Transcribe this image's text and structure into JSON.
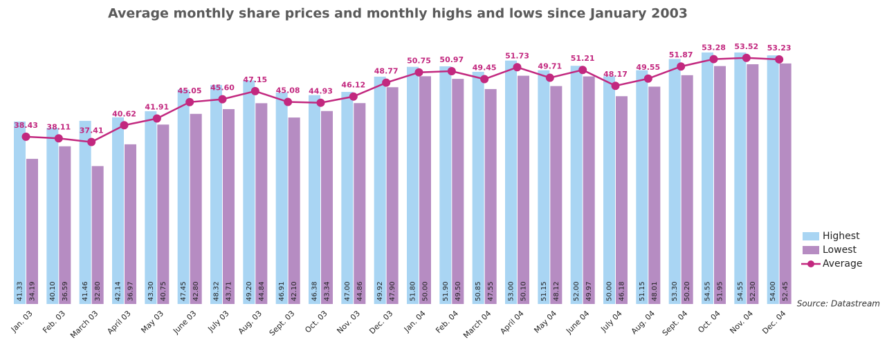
{
  "chart_data": {
    "type": "bar-line",
    "title": "Average monthly share prices and monthly highs and lows since January 2003",
    "source": "Source: Datastream",
    "categories": [
      "Jan. 03",
      "Feb. 03",
      "March 03",
      "April 03",
      "May 03",
      "June 03",
      "July 03",
      "Aug. 03",
      "Sept. 03",
      "Oct. 03",
      "Nov. 03",
      "Dec. 03",
      "Jan. 04",
      "Feb. 04",
      "March 04",
      "April 04",
      "May 04",
      "June 04",
      "July 04",
      "Aug. 04",
      "Sept. 04",
      "Oct. 04",
      "Nov. 04",
      "Dec. 04"
    ],
    "ylim": [
      6.4,
      56
    ],
    "legend": "right",
    "series": [
      {
        "name": "Highest",
        "type": "bar",
        "color": "#a9d5f3",
        "values": [
          41.33,
          40.1,
          41.46,
          42.14,
          43.3,
          47.45,
          48.32,
          49.2,
          46.91,
          46.38,
          47.0,
          49.92,
          51.8,
          51.9,
          50.85,
          53.0,
          51.15,
          52.0,
          50.0,
          51.15,
          53.3,
          54.55,
          54.55,
          54.0
        ],
        "value_labels": [
          "41.33",
          "40.10",
          "41.46",
          "42.14",
          "43.30",
          "47.45",
          "48.32",
          "49.20",
          "46.91",
          "46.38",
          "47.00",
          "49.92",
          "51.80",
          "51.90",
          "50.85",
          "53.00",
          "51.15",
          "52.00",
          "50.00",
          "51.15",
          "53.30",
          "54.55",
          "54.55",
          "54.00"
        ]
      },
      {
        "name": "Lowest",
        "type": "bar",
        "color": "#b68cc2",
        "values": [
          34.19,
          36.59,
          32.8,
          36.97,
          40.75,
          42.8,
          43.71,
          44.84,
          42.1,
          43.34,
          44.86,
          47.9,
          50.0,
          49.5,
          47.55,
          50.1,
          48.12,
          49.97,
          46.18,
          48.01,
          50.2,
          51.95,
          52.3,
          52.45
        ],
        "value_labels": [
          "34.19",
          "36.59",
          "32.80",
          "36.97",
          "40.75",
          "42.80",
          "43.71",
          "44.84",
          "42.10",
          "43.34",
          "44.86",
          "47.90",
          "50.00",
          "49.50",
          "47.55",
          "50.10",
          "48.12",
          "49.97",
          "46.18",
          "48.01",
          "50.20",
          "51.95",
          "52.30",
          "52.45"
        ]
      },
      {
        "name": "Average",
        "type": "line",
        "color": "#c2287f",
        "values": [
          38.43,
          38.11,
          37.41,
          40.62,
          41.91,
          45.05,
          45.6,
          47.15,
          45.08,
          44.93,
          46.12,
          48.77,
          50.75,
          50.97,
          49.45,
          51.73,
          49.71,
          51.21,
          48.17,
          49.55,
          51.87,
          53.28,
          53.52,
          53.23
        ],
        "value_labels": [
          "38.43",
          "38.11",
          "37.41",
          "40.62",
          "41.91",
          "45.05",
          "45.60",
          "47.15",
          "45.08",
          "44.93",
          "46.12",
          "48.77",
          "50.75",
          "50.97",
          "49.45",
          "51.73",
          "49.71",
          "51.21",
          "48.17",
          "49.55",
          "51.87",
          "53.28",
          "53.52",
          "53.23"
        ]
      }
    ]
  }
}
